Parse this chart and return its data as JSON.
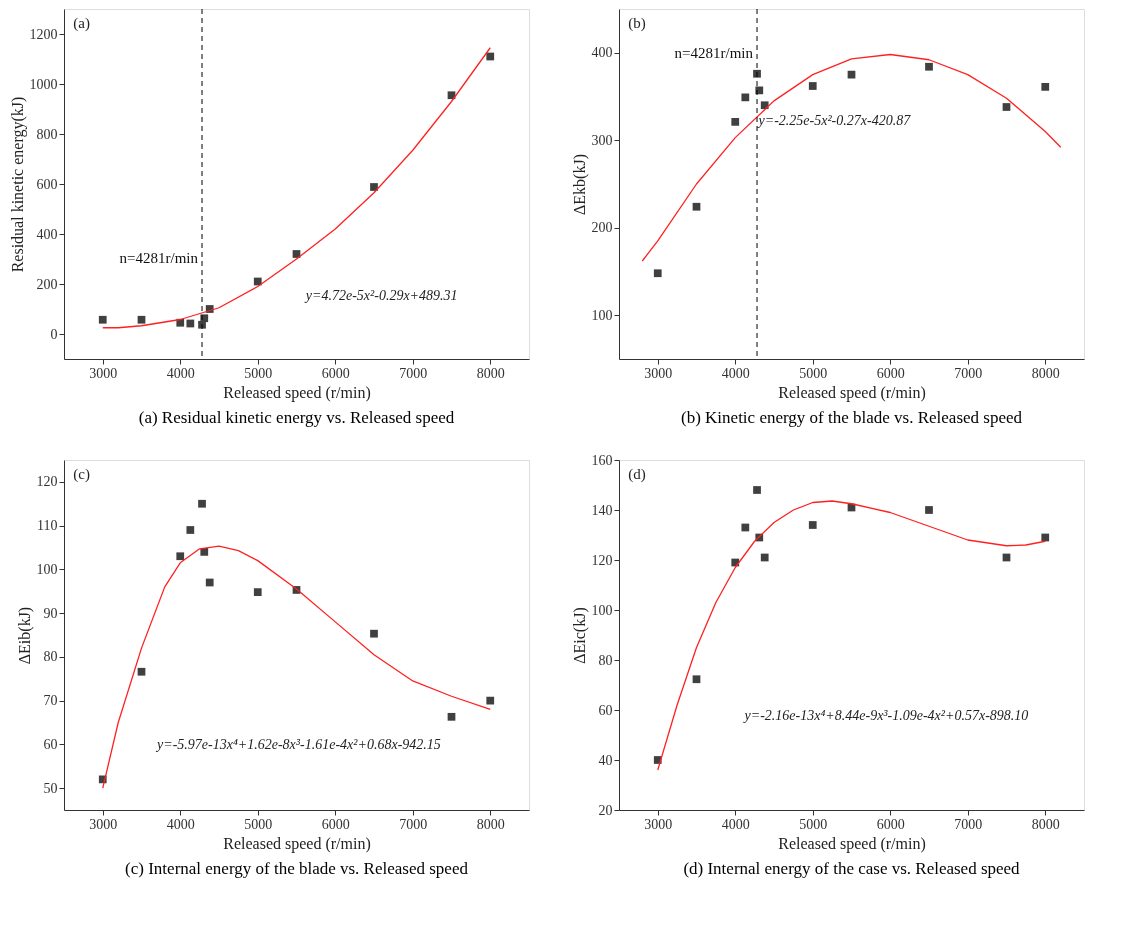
{
  "chart_data": [
    {
      "type": "scatter",
      "title": "(a) Residual kinetic energy vs. Released speed",
      "xlabel": "Released speed  (r/min)",
      "ylabel": "Residual kinetic energy(kJ)",
      "xlim": [
        2500,
        8500
      ],
      "xticks": [
        3000,
        4000,
        5000,
        6000,
        7000,
        8000
      ],
      "ylim": [
        -100,
        1300
      ],
      "yticks": [
        0,
        200,
        400,
        600,
        800,
        1000,
        1200
      ],
      "grid": false,
      "series": [
        {
          "marker": "square",
          "color": "#404040",
          "x": [
            3000,
            3500,
            4000,
            4130,
            4281,
            4310,
            4380,
            5000,
            5500,
            6500,
            7500,
            8000
          ],
          "values": [
            57,
            57,
            45,
            42,
            37,
            63,
            100,
            210,
            320,
            588,
            955,
            1110
          ]
        },
        {
          "type": "line",
          "color": "#ff2020",
          "x": [
            3000,
            3200,
            3500,
            4000,
            4500,
            5000,
            5500,
            6000,
            6500,
            7000,
            7500,
            8000
          ],
          "values": [
            25,
            25,
            33,
            58,
            105,
            190,
            300,
            420,
            565,
            735,
            930,
            1145
          ]
        }
      ],
      "ref_lines": [
        {
          "axis": "x",
          "value": 4281,
          "label": "n=4281r/min",
          "color": "#000000",
          "line_style": "dashed"
        }
      ],
      "annotations": [
        "(a)",
        "y=4.72e-5x²-0.29x+489.31"
      ]
    },
    {
      "type": "scatter",
      "title": "(b) Kinetic energy of  the blade vs. Released speed",
      "xlabel": "Released speed  (r/min)",
      "ylabel": "ΔEkb(kJ)",
      "xlim": [
        2500,
        8500
      ],
      "xticks": [
        3000,
        4000,
        5000,
        6000,
        7000,
        8000
      ],
      "ylim": [
        50,
        450
      ],
      "yticks": [
        100,
        200,
        300,
        400
      ],
      "grid": false,
      "series": [
        {
          "marker": "square",
          "color": "#404040",
          "x": [
            3000,
            3500,
            4000,
            4130,
            4281,
            4310,
            4380,
            5000,
            5500,
            6500,
            7500,
            8000
          ],
          "values": [
            148,
            224,
            321,
            349,
            376,
            357,
            340,
            362,
            375,
            384,
            338,
            361
          ]
        },
        {
          "type": "line",
          "color": "#ff2020",
          "x": [
            2800,
            3000,
            3500,
            4000,
            4500,
            5000,
            5500,
            6000,
            6500,
            7000,
            7500,
            8000,
            8200
          ],
          "values": [
            162,
            185,
            250,
            303,
            345,
            375,
            393,
            398,
            392,
            375,
            348,
            310,
            292
          ]
        }
      ],
      "ref_lines": [
        {
          "axis": "x",
          "value": 4281,
          "label": "n=4281r/min",
          "color": "#000000",
          "line_style": "dashed"
        }
      ],
      "annotations": [
        "(b)",
        "y=-2.25e-5x²-0.27x-420.87"
      ]
    },
    {
      "type": "scatter",
      "title": "(c) Internal energy of  the blade vs. Released speed",
      "xlabel": "Released speed  (r/min)",
      "ylabel": "ΔEib(kJ)",
      "xlim": [
        2500,
        8500
      ],
      "xticks": [
        3000,
        4000,
        5000,
        6000,
        7000,
        8000
      ],
      "ylim": [
        45,
        125
      ],
      "yticks": [
        50,
        60,
        70,
        80,
        90,
        100,
        110,
        120
      ],
      "grid": false,
      "series": [
        {
          "marker": "square",
          "color": "#404040",
          "x": [
            3000,
            3500,
            4000,
            4130,
            4281,
            4310,
            4380,
            5000,
            5500,
            6500,
            7500,
            8000
          ],
          "values": [
            52,
            76.6,
            103,
            109,
            115,
            104,
            97,
            94.8,
            95.3,
            85.3,
            66.3,
            70
          ]
        },
        {
          "type": "line",
          "color": "#ff2020",
          "x": [
            3000,
            3200,
            3500,
            3800,
            4000,
            4250,
            4500,
            4750,
            5000,
            5500,
            6000,
            6500,
            7000,
            7500,
            8000
          ],
          "values": [
            50,
            65,
            82,
            96,
            101.5,
            104.7,
            105.3,
            104.3,
            102,
            95.5,
            88,
            80.5,
            74.5,
            71,
            68
          ]
        }
      ],
      "annotations": [
        "(c)",
        "y=-5.97e-13x⁴+1.62e-8x³-1.61e-4x²+0.68x-942.15"
      ]
    },
    {
      "type": "scatter",
      "title": "(d) Internal energy of  the case vs. Released speed",
      "xlabel": "Released speed  (r/min)",
      "ylabel": "ΔEic(kJ)",
      "xlim": [
        2500,
        8500
      ],
      "xticks": [
        3000,
        4000,
        5000,
        6000,
        7000,
        8000
      ],
      "ylim": [
        20,
        160
      ],
      "yticks": [
        20,
        40,
        60,
        80,
        100,
        120,
        140,
        160
      ],
      "grid": false,
      "series": [
        {
          "marker": "square",
          "color": "#404040",
          "x": [
            3000,
            3500,
            4000,
            4130,
            4281,
            4310,
            4380,
            5000,
            5500,
            6500,
            7500,
            8000
          ],
          "values": [
            40,
            72.3,
            119,
            133,
            148,
            129,
            121,
            134,
            141,
            140,
            121,
            129
          ]
        },
        {
          "type": "line",
          "color": "#ff2020",
          "x": [
            3000,
            3250,
            3500,
            3750,
            4000,
            4250,
            4500,
            4750,
            5000,
            5250,
            5500,
            6000,
            6500,
            7000,
            7500,
            7750,
            8000
          ],
          "values": [
            36,
            62,
            85,
            103,
            117,
            127.5,
            135,
            140,
            143,
            143.6,
            142.5,
            139,
            133.5,
            128,
            125.7,
            126,
            127.5
          ]
        }
      ],
      "annotations": [
        "(d)",
        "y=-2.16e-13x⁴+8.44e-9x³-1.09e-4x²+0.57x-898.10"
      ]
    }
  ]
}
